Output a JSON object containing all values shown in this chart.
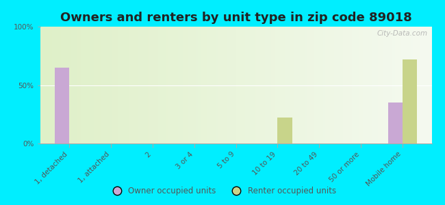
{
  "title": "Owners and renters by unit type in zip code 89018",
  "categories": [
    "1, detached",
    "1, attached",
    "2",
    "3 or 4",
    "5 to 9",
    "10 to 19",
    "20 to 49",
    "50 or more",
    "Mobile home"
  ],
  "owner_values": [
    65,
    0,
    0,
    0,
    0,
    0,
    0,
    0,
    35
  ],
  "renter_values": [
    0,
    0,
    0,
    0,
    0,
    22,
    0,
    0,
    72
  ],
  "owner_color": "#c9a8d4",
  "renter_color": "#c8d48a",
  "background_color": "#00eeff",
  "ylabel_ticks": [
    "0%",
    "50%",
    "100%"
  ],
  "ytick_vals": [
    0,
    50,
    100
  ],
  "ylim": [
    0,
    100
  ],
  "bar_width": 0.35,
  "watermark": "City-Data.com",
  "legend_labels": [
    "Owner occupied units",
    "Renter occupied units"
  ],
  "title_fontsize": 13,
  "tick_fontsize": 7.5
}
